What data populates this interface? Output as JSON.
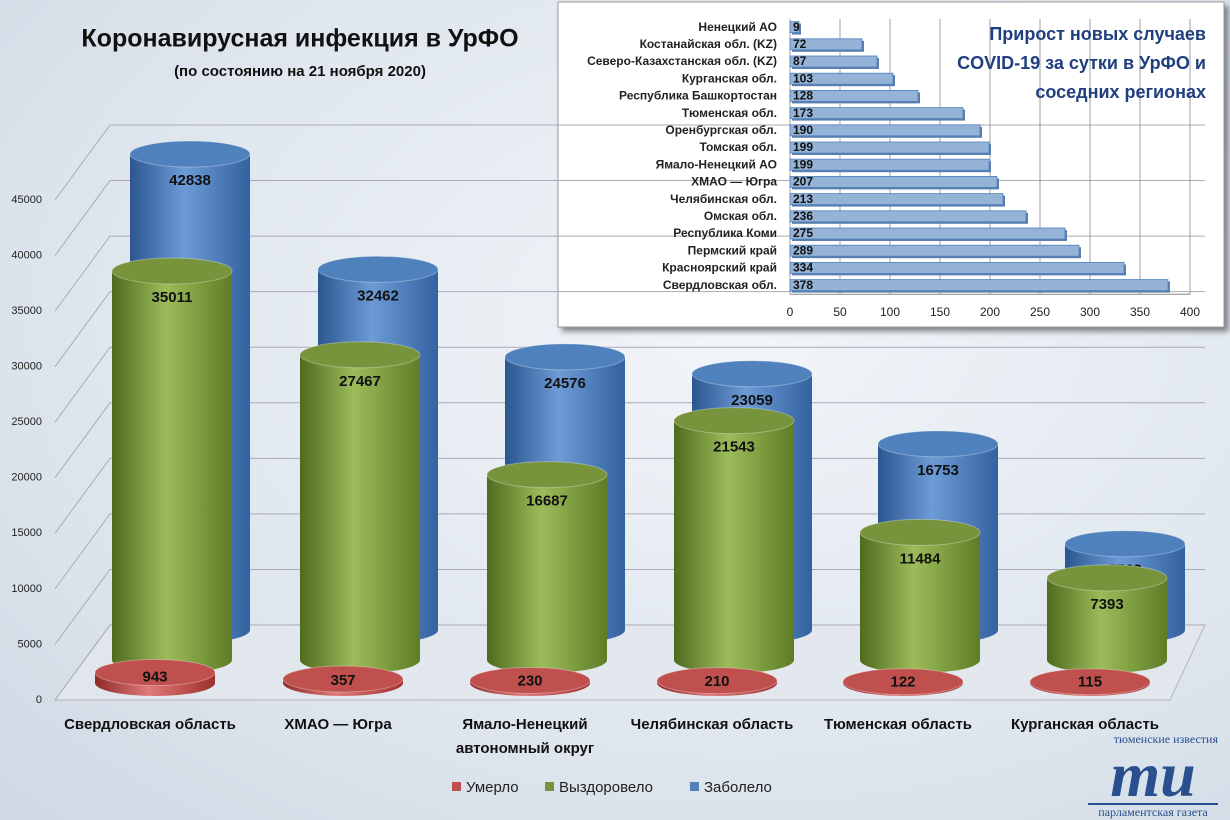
{
  "chart_data": [
    {
      "type": "cylinder",
      "title": "Коронавирусная инфекция в УрФО",
      "subtitle": "(по состоянию на 21 ноября 2020)",
      "categories": [
        "Свердловская область",
        "ХМАО — Югра",
        "Ямало-Ненецкий автономный округ",
        "Челябинская область",
        "Тюменская область",
        "Курганская область"
      ],
      "series": [
        {
          "name": "Умерло",
          "color": "#c0504d",
          "values": [
            943,
            357,
            230,
            210,
            122,
            115
          ]
        },
        {
          "name": "Выздоровело",
          "color": "#77933c",
          "values": [
            35011,
            27467,
            16687,
            21543,
            11484,
            7393
          ]
        },
        {
          "name": "Заболело",
          "color": "#4f81bd",
          "values": [
            42838,
            32462,
            24576,
            23059,
            16753,
            7763
          ]
        }
      ],
      "ylim": [
        0,
        45000
      ],
      "yticks": [
        0,
        5000,
        10000,
        15000,
        20000,
        25000,
        30000,
        35000,
        40000,
        45000
      ],
      "grid": true,
      "legend": "bottom"
    },
    {
      "type": "bar",
      "orientation": "horizontal",
      "title": "Прирост новых случаев COVID-19 за сутки в УрФО и соседних регионах",
      "categories": [
        "Ненецкий АО",
        "Костанайская обл. (KZ)",
        "Северо-Казахстанская обл. (KZ)",
        "Курганская обл.",
        "Республика Башкортостан",
        "Тюменская обл.",
        "Оренбургская обл.",
        "Томская обл.",
        "Ямало-Ненецкий АО",
        "ХМАО — Югра",
        "Челябинская обл.",
        "Омская обл.",
        "Республика Коми",
        "Пермский край",
        "Красноярский край",
        "Свердловская обл."
      ],
      "values": [
        9,
        72,
        87,
        103,
        128,
        173,
        190,
        199,
        199,
        207,
        213,
        236,
        275,
        289,
        334,
        378
      ],
      "color": "#95b3d7",
      "xlim": [
        0,
        400
      ],
      "xticks": [
        0,
        50,
        100,
        150,
        200,
        250,
        300,
        350,
        400
      ],
      "grid": true
    }
  ],
  "logo": {
    "top": "тюменские известия",
    "mark": "ти",
    "bottom": "парламентская газета"
  }
}
